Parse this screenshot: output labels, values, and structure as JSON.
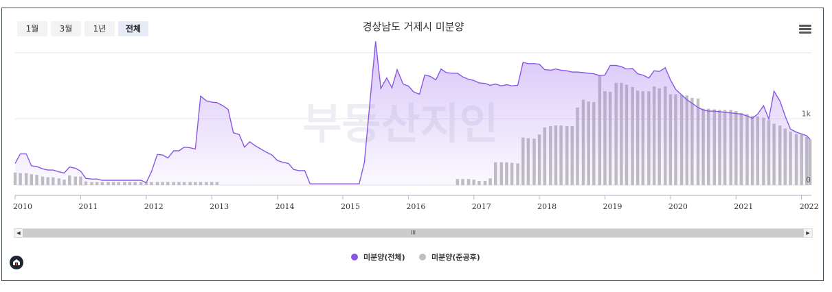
{
  "range_buttons": [
    "1월",
    "3월",
    "1년",
    "전체"
  ],
  "active_range": "전체",
  "chart_data": {
    "type": "area+bar",
    "title": "경상남도 거제시 미분양",
    "y_ticks": [
      "0",
      "1k"
    ],
    "ylim": [
      0,
      2200
    ],
    "xlim": [
      2010.0,
      2022.15
    ],
    "x_ticks": [
      "2010",
      "2011",
      "2012",
      "2013",
      "2014",
      "2015",
      "2016",
      "2017",
      "2018",
      "2019",
      "2020",
      "2021",
      "2022"
    ],
    "watermark": "부동산지인",
    "legend_position": "bottom-center",
    "grid": "horizontal",
    "series": [
      {
        "name": "미분양(전체)",
        "type": "area",
        "color": "#8a55e6",
        "points": [
          [
            2010.0,
            360
          ],
          [
            2010.08,
            520
          ],
          [
            2010.17,
            520
          ],
          [
            2010.25,
            320
          ],
          [
            2010.33,
            310
          ],
          [
            2010.42,
            270
          ],
          [
            2010.5,
            250
          ],
          [
            2010.58,
            250
          ],
          [
            2010.67,
            220
          ],
          [
            2010.75,
            200
          ],
          [
            2010.83,
            300
          ],
          [
            2010.92,
            280
          ],
          [
            2011.0,
            230
          ],
          [
            2011.08,
            110
          ],
          [
            2011.17,
            100
          ],
          [
            2011.25,
            100
          ],
          [
            2011.33,
            80
          ],
          [
            2011.42,
            80
          ],
          [
            2011.5,
            80
          ],
          [
            2011.58,
            80
          ],
          [
            2011.67,
            80
          ],
          [
            2011.75,
            80
          ],
          [
            2011.83,
            80
          ],
          [
            2011.92,
            80
          ],
          [
            2012.0,
            40
          ],
          [
            2012.08,
            220
          ],
          [
            2012.17,
            510
          ],
          [
            2012.25,
            500
          ],
          [
            2012.33,
            450
          ],
          [
            2012.42,
            570
          ],
          [
            2012.5,
            570
          ],
          [
            2012.58,
            630
          ],
          [
            2012.67,
            620
          ],
          [
            2012.75,
            600
          ],
          [
            2012.83,
            1480
          ],
          [
            2012.92,
            1400
          ],
          [
            2013.0,
            1380
          ],
          [
            2013.08,
            1370
          ],
          [
            2013.17,
            1320
          ],
          [
            2013.25,
            1260
          ],
          [
            2013.33,
            870
          ],
          [
            2013.42,
            840
          ],
          [
            2013.5,
            630
          ],
          [
            2013.58,
            720
          ],
          [
            2013.67,
            650
          ],
          [
            2013.75,
            600
          ],
          [
            2013.83,
            550
          ],
          [
            2013.92,
            500
          ],
          [
            2014.0,
            410
          ],
          [
            2014.08,
            380
          ],
          [
            2014.17,
            360
          ],
          [
            2014.25,
            260
          ],
          [
            2014.33,
            240
          ],
          [
            2014.42,
            240
          ],
          [
            2014.5,
            20
          ],
          [
            2014.58,
            20
          ],
          [
            2014.67,
            20
          ],
          [
            2014.75,
            20
          ],
          [
            2014.83,
            20
          ],
          [
            2014.92,
            20
          ],
          [
            2015.0,
            20
          ],
          [
            2015.08,
            20
          ],
          [
            2015.17,
            20
          ],
          [
            2015.25,
            20
          ],
          [
            2015.33,
            380
          ],
          [
            2015.42,
            1450
          ],
          [
            2015.5,
            2390
          ],
          [
            2015.58,
            1610
          ],
          [
            2015.67,
            1780
          ],
          [
            2015.75,
            1620
          ],
          [
            2015.83,
            1920
          ],
          [
            2015.92,
            1680
          ],
          [
            2016.0,
            1650
          ],
          [
            2016.08,
            1550
          ],
          [
            2016.17,
            1510
          ],
          [
            2016.25,
            1830
          ],
          [
            2016.33,
            1810
          ],
          [
            2016.42,
            1750
          ],
          [
            2016.5,
            1930
          ],
          [
            2016.58,
            1870
          ],
          [
            2016.67,
            1860
          ],
          [
            2016.75,
            1860
          ],
          [
            2016.83,
            1800
          ],
          [
            2016.92,
            1760
          ],
          [
            2017.0,
            1740
          ],
          [
            2017.08,
            1700
          ],
          [
            2017.17,
            1690
          ],
          [
            2017.25,
            1660
          ],
          [
            2017.33,
            1680
          ],
          [
            2017.42,
            1650
          ],
          [
            2017.5,
            1670
          ],
          [
            2017.58,
            1650
          ],
          [
            2017.67,
            1660
          ],
          [
            2017.75,
            2040
          ],
          [
            2017.83,
            2020
          ],
          [
            2017.92,
            2020
          ],
          [
            2018.0,
            2010
          ],
          [
            2018.08,
            1920
          ],
          [
            2018.17,
            1910
          ],
          [
            2018.25,
            1930
          ],
          [
            2018.33,
            1910
          ],
          [
            2018.42,
            1900
          ],
          [
            2018.5,
            1880
          ],
          [
            2018.58,
            1880
          ],
          [
            2018.67,
            1870
          ],
          [
            2018.75,
            1860
          ],
          [
            2018.83,
            1850
          ],
          [
            2018.92,
            1820
          ],
          [
            2019.0,
            1830
          ],
          [
            2019.08,
            1990
          ],
          [
            2019.17,
            1990
          ],
          [
            2019.25,
            1970
          ],
          [
            2019.33,
            1930
          ],
          [
            2019.42,
            1940
          ],
          [
            2019.5,
            1850
          ],
          [
            2019.58,
            1830
          ],
          [
            2019.67,
            1780
          ],
          [
            2019.75,
            1900
          ],
          [
            2019.83,
            1890
          ],
          [
            2019.92,
            1950
          ],
          [
            2020.0,
            1750
          ],
          [
            2020.08,
            1590
          ],
          [
            2020.17,
            1500
          ],
          [
            2020.25,
            1420
          ],
          [
            2020.33,
            1360
          ],
          [
            2020.42,
            1290
          ],
          [
            2020.5,
            1250
          ],
          [
            2020.58,
            1230
          ],
          [
            2020.67,
            1230
          ],
          [
            2020.75,
            1220
          ],
          [
            2020.83,
            1210
          ],
          [
            2020.92,
            1200
          ],
          [
            2021.0,
            1190
          ],
          [
            2021.08,
            1180
          ],
          [
            2021.17,
            1150
          ],
          [
            2021.25,
            1110
          ],
          [
            2021.33,
            1180
          ],
          [
            2021.42,
            1320
          ],
          [
            2021.5,
            1100
          ],
          [
            2021.58,
            1560
          ],
          [
            2021.67,
            1400
          ],
          [
            2021.75,
            1150
          ],
          [
            2021.83,
            930
          ],
          [
            2021.92,
            880
          ],
          [
            2022.0,
            850
          ],
          [
            2022.08,
            820
          ],
          [
            2022.13,
            760
          ]
        ]
      },
      {
        "name": "미분양(준공후)",
        "type": "bar",
        "color": "#bfbfbf",
        "points": [
          [
            2010.0,
            210
          ],
          [
            2010.08,
            200
          ],
          [
            2010.17,
            200
          ],
          [
            2010.25,
            180
          ],
          [
            2010.33,
            170
          ],
          [
            2010.42,
            140
          ],
          [
            2010.5,
            130
          ],
          [
            2010.58,
            130
          ],
          [
            2010.67,
            110
          ],
          [
            2010.75,
            90
          ],
          [
            2010.83,
            160
          ],
          [
            2010.92,
            140
          ],
          [
            2011.0,
            140
          ],
          [
            2011.08,
            60
          ],
          [
            2011.17,
            50
          ],
          [
            2011.25,
            50
          ],
          [
            2011.33,
            50
          ],
          [
            2011.42,
            50
          ],
          [
            2011.5,
            50
          ],
          [
            2011.58,
            50
          ],
          [
            2011.67,
            50
          ],
          [
            2011.75,
            50
          ],
          [
            2011.83,
            50
          ],
          [
            2011.92,
            50
          ],
          [
            2012.0,
            50
          ],
          [
            2012.08,
            50
          ],
          [
            2012.17,
            50
          ],
          [
            2012.25,
            50
          ],
          [
            2012.33,
            50
          ],
          [
            2012.42,
            50
          ],
          [
            2012.5,
            50
          ],
          [
            2012.58,
            50
          ],
          [
            2012.67,
            50
          ],
          [
            2012.75,
            50
          ],
          [
            2012.83,
            50
          ],
          [
            2012.92,
            50
          ],
          [
            2013.0,
            50
          ],
          [
            2013.08,
            50
          ],
          [
            2016.75,
            100
          ],
          [
            2016.83,
            100
          ],
          [
            2016.92,
            100
          ],
          [
            2017.0,
            90
          ],
          [
            2017.08,
            70
          ],
          [
            2017.17,
            70
          ],
          [
            2017.25,
            110
          ],
          [
            2017.33,
            380
          ],
          [
            2017.42,
            380
          ],
          [
            2017.5,
            380
          ],
          [
            2017.58,
            370
          ],
          [
            2017.67,
            360
          ],
          [
            2017.75,
            790
          ],
          [
            2017.83,
            780
          ],
          [
            2017.92,
            770
          ],
          [
            2018.0,
            840
          ],
          [
            2018.08,
            960
          ],
          [
            2018.17,
            980
          ],
          [
            2018.25,
            990
          ],
          [
            2018.33,
            990
          ],
          [
            2018.42,
            980
          ],
          [
            2018.5,
            980
          ],
          [
            2018.58,
            1290
          ],
          [
            2018.67,
            1420
          ],
          [
            2018.75,
            1390
          ],
          [
            2018.83,
            1380
          ],
          [
            2018.92,
            1830
          ],
          [
            2019.0,
            1560
          ],
          [
            2019.08,
            1550
          ],
          [
            2019.17,
            1700
          ],
          [
            2019.25,
            1700
          ],
          [
            2019.33,
            1670
          ],
          [
            2019.42,
            1630
          ],
          [
            2019.5,
            1570
          ],
          [
            2019.58,
            1560
          ],
          [
            2019.67,
            1560
          ],
          [
            2019.75,
            1640
          ],
          [
            2019.83,
            1610
          ],
          [
            2019.92,
            1640
          ],
          [
            2020.0,
            1510
          ],
          [
            2020.08,
            1510
          ],
          [
            2020.17,
            1500
          ],
          [
            2020.25,
            1490
          ],
          [
            2020.33,
            1450
          ],
          [
            2020.42,
            1440
          ],
          [
            2020.5,
            1270
          ],
          [
            2020.58,
            1270
          ],
          [
            2020.67,
            1260
          ],
          [
            2020.75,
            1250
          ],
          [
            2020.83,
            1250
          ],
          [
            2020.92,
            1250
          ],
          [
            2021.0,
            1230
          ],
          [
            2021.08,
            1200
          ],
          [
            2021.17,
            1180
          ],
          [
            2021.25,
            1150
          ],
          [
            2021.33,
            1140
          ],
          [
            2021.42,
            1120
          ],
          [
            2021.5,
            1080
          ],
          [
            2021.58,
            1020
          ],
          [
            2021.67,
            990
          ],
          [
            2021.75,
            940
          ],
          [
            2021.83,
            890
          ],
          [
            2021.92,
            850
          ],
          [
            2022.0,
            840
          ],
          [
            2022.08,
            800
          ],
          [
            2022.13,
            760
          ]
        ]
      }
    ]
  },
  "scrollbar": {
    "grip": "III"
  }
}
